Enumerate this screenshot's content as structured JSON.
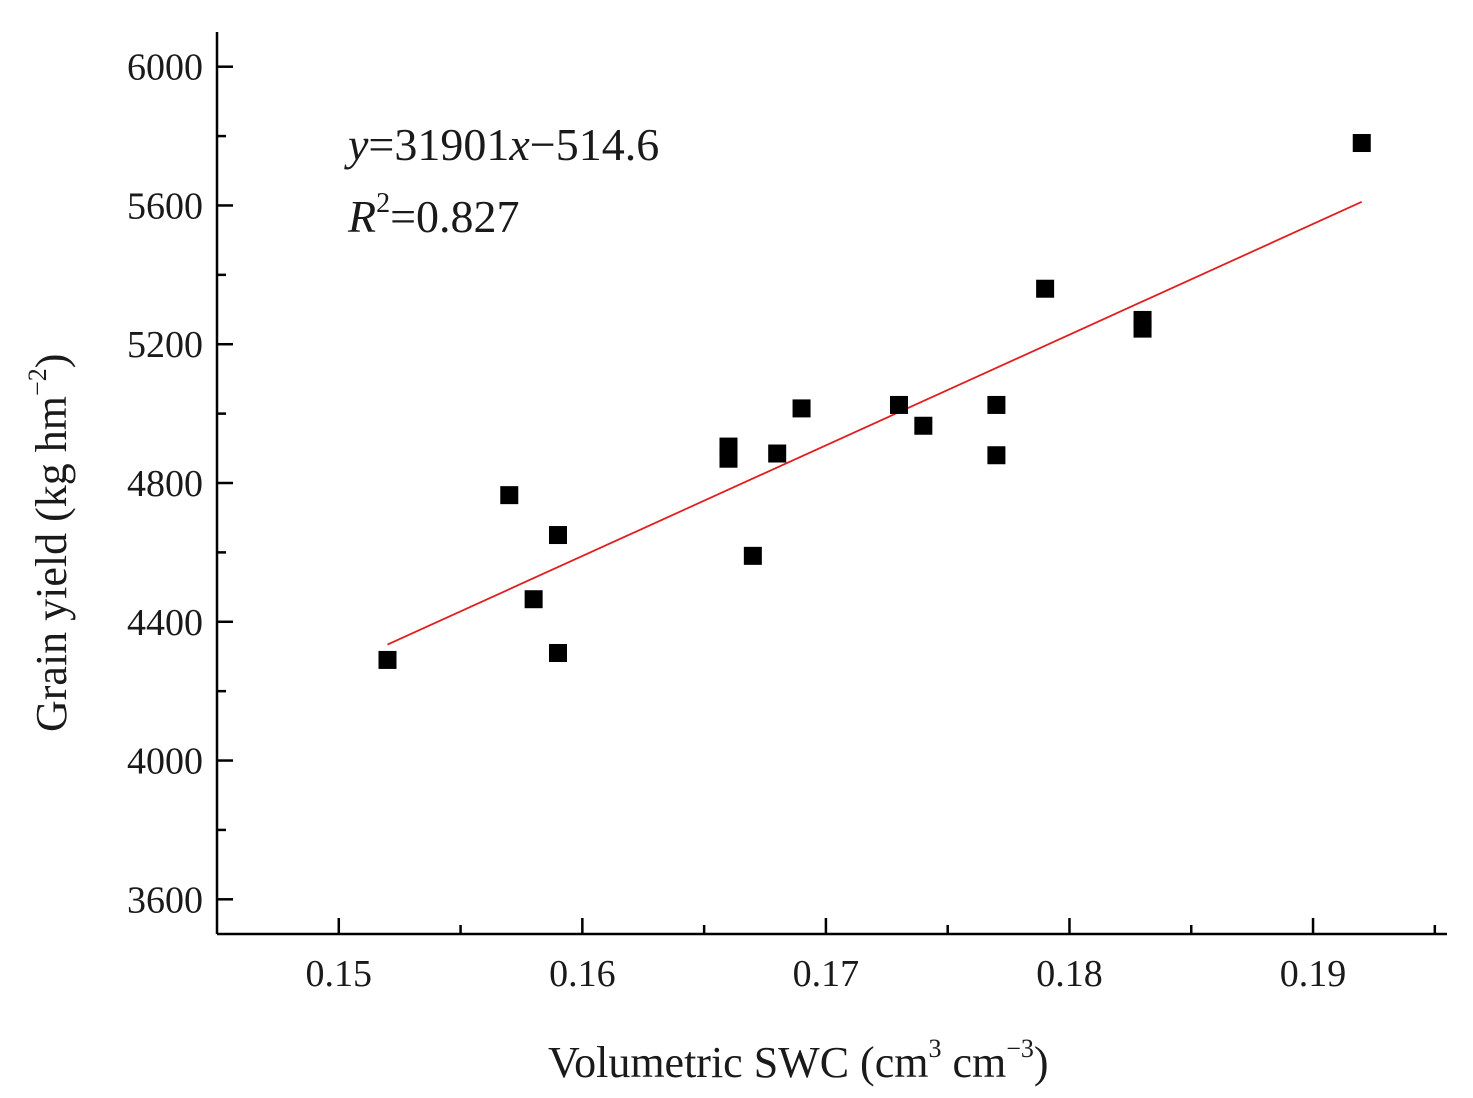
{
  "chart_data": {
    "type": "scatter",
    "xlabel": "Volumetric SWC (cm³ cm⁻³)",
    "xlabel_parts": {
      "main": "Volumetric SWC (cm",
      "sup1": "3",
      "mid": " cm",
      "sup2": "−3",
      "end": ")"
    },
    "ylabel": "Grain yield (kg hm⁻²)",
    "ylabel_parts": {
      "main": "Grain yield (kg hm",
      "sup": "−2",
      "end": ")"
    },
    "xlim": [
      0.145,
      0.1955
    ],
    "ylim": [
      3500,
      6100
    ],
    "x_ticks": [
      0.15,
      0.16,
      0.17,
      0.18,
      0.19
    ],
    "x_tick_labels": [
      "0.15",
      "0.16",
      "0.17",
      "0.18",
      "0.19"
    ],
    "y_ticks": [
      3600,
      4000,
      4400,
      4800,
      5200,
      5600,
      6000
    ],
    "y_tick_labels": [
      "3600",
      "4000",
      "4400",
      "4800",
      "5200",
      "5600",
      "6000"
    ],
    "points": [
      {
        "x": 0.152,
        "y": 4290
      },
      {
        "x": 0.157,
        "y": 4765
      },
      {
        "x": 0.158,
        "y": 4465
      },
      {
        "x": 0.159,
        "y": 4650
      },
      {
        "x": 0.159,
        "y": 4310
      },
      {
        "x": 0.166,
        "y": 4905
      },
      {
        "x": 0.166,
        "y": 4870
      },
      {
        "x": 0.167,
        "y": 4590
      },
      {
        "x": 0.168,
        "y": 4885
      },
      {
        "x": 0.169,
        "y": 5015
      },
      {
        "x": 0.173,
        "y": 5025
      },
      {
        "x": 0.174,
        "y": 4965
      },
      {
        "x": 0.177,
        "y": 5025
      },
      {
        "x": 0.177,
        "y": 4880
      },
      {
        "x": 0.179,
        "y": 5360
      },
      {
        "x": 0.183,
        "y": 5270
      },
      {
        "x": 0.183,
        "y": 5245
      },
      {
        "x": 0.192,
        "y": 5780
      }
    ],
    "fit": {
      "slope": 31901,
      "intercept": -514.6,
      "x_start": 0.152,
      "x_end": 0.192,
      "color": "#e02020"
    },
    "annotation": {
      "equation": {
        "var_y": "y",
        "eq": "=31901",
        "var_x": "x",
        "rest": "−514.6"
      },
      "r2": {
        "var": "R",
        "sup": "2",
        "rest": "=0.827"
      }
    },
    "marker_color": "#000000"
  }
}
